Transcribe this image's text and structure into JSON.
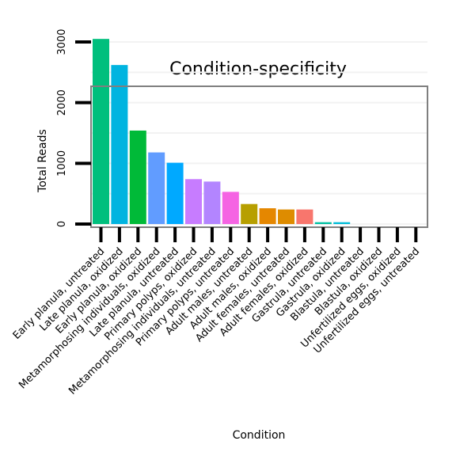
{
  "chart_data": {
    "type": "bar",
    "title": "Condition-specificity",
    "xlabel": "Condition",
    "ylabel": "Total Reads",
    "ylim": [
      0,
      3300
    ],
    "yticks": [
      0,
      1000,
      2000,
      3000
    ],
    "categories": [
      "Early planula, untreated",
      "Late planula, oxidized",
      "Early planula, oxidized",
      "Metamorphosing individuals, oxidized",
      "Late planula, untreated",
      "Primary polyps, oxidized",
      "Metamorphosing individuals, untreated",
      "Primary polyps, untreated",
      "Adult males, untreated",
      "Adult males, oxidized",
      "Adult females, untreated",
      "Adult females, oxidized",
      "Gastrula, untreated",
      "Gastrula, oxidized",
      "Blastula, untreated",
      "Blastula, oxidized",
      "Unfertilized eggs, oxidized",
      "Unfertilized eggs, untreated"
    ],
    "values": [
      3050,
      2620,
      1540,
      1180,
      1010,
      740,
      700,
      530,
      330,
      260,
      240,
      240,
      30,
      30,
      0,
      0,
      0,
      0
    ],
    "colors": [
      "#00BF7D",
      "#00B4E0",
      "#00BA38",
      "#619CFF",
      "#00A9FF",
      "#C77CFF",
      "#B385FF",
      "#F564E3",
      "#B79F00",
      "#E58700",
      "#DE8C00",
      "#F8766D",
      "#00C1A3",
      "#00BCD8",
      "#00BFC4",
      "#00B0F6",
      "#E76BF3",
      "#FF61C3"
    ],
    "grid": true,
    "legend": "none"
  }
}
